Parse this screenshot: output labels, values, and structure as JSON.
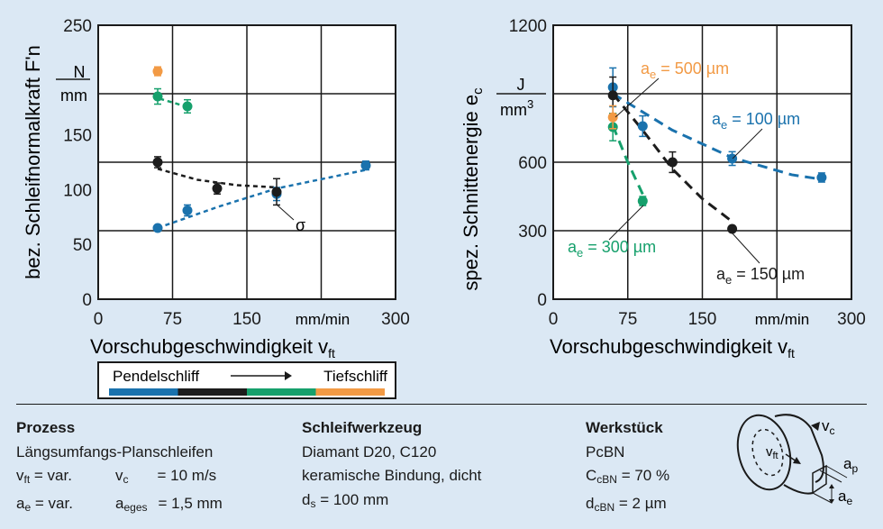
{
  "colors": {
    "blue": "#1a72ad",
    "black": "#1c1c1c",
    "green": "#16a06c",
    "orange": "#f29a45",
    "background": "#dbe8f4"
  },
  "chart_data": [
    {
      "type": "scatter",
      "ylabel": "bez. Schleifnormalkraft F'n",
      "yunit_num": "N",
      "yunit_den": "mm",
      "xlabel_main": "Vorschubgeschwindigkeit v",
      "xlabel_sub": "ft",
      "xunit": "mm/min",
      "xlim": [
        0,
        300
      ],
      "ylim": [
        0,
        250
      ],
      "xticks": [
        "0",
        "75",
        "150",
        "300"
      ],
      "yticks": [
        "0",
        "50",
        "100",
        "150",
        "250"
      ],
      "grid": true,
      "annotation": "σ",
      "series": [
        {
          "name": "Pendelschliff (blue)",
          "color": "blue",
          "points": [
            [
              60,
              65,
              1.5
            ],
            [
              90,
              81,
              5
            ],
            [
              180,
              96,
              6
            ],
            [
              270,
              122,
              4
            ]
          ],
          "fit": [
            [
              60,
              65
            ],
            [
              120,
              84
            ],
            [
              180,
              101
            ],
            [
              270,
              118
            ]
          ]
        },
        {
          "name": "black",
          "color": "black",
          "points": [
            [
              60,
              125,
              5
            ],
            [
              120,
              101,
              5
            ],
            [
              180,
              98,
              12
            ]
          ],
          "fit": [
            [
              60,
              119
            ],
            [
              100,
              109
            ],
            [
              140,
              104
            ],
            [
              180,
              102
            ]
          ]
        },
        {
          "name": "green",
          "color": "green",
          "points": [
            [
              60,
              185,
              7
            ],
            [
              90,
              176,
              6
            ]
          ],
          "fit": [
            [
              62,
              183
            ],
            [
              88,
              176
            ]
          ]
        },
        {
          "name": "Tiefschliff (orange)",
          "color": "orange",
          "points": [
            [
              60,
              208,
              4
            ]
          ],
          "fit": []
        }
      ]
    },
    {
      "type": "scatter",
      "ylabel": "spez. Schnittenergie e",
      "ylabel_sub": "c",
      "yunit_num": "J",
      "yunit_den": "mm",
      "yunit_exp": "3",
      "xlabel_main": "Vorschubgeschwindigkeit v",
      "xlabel_sub": "ft",
      "xunit": "mm/min",
      "xlim": [
        0,
        300
      ],
      "ylim": [
        0,
        1200
      ],
      "xticks": [
        "0",
        "75",
        "150",
        "300"
      ],
      "yticks": [
        "0",
        "300",
        "600",
        "1200"
      ],
      "grid": true,
      "series": [
        {
          "name": "a_e = 100 µm",
          "color": "blue",
          "label_a": "a",
          "label_sub": "e",
          "label_rest": " = 100 µm",
          "points": [
            [
              60,
              928,
              85
            ],
            [
              90,
              758,
              45
            ],
            [
              180,
              616,
              30
            ],
            [
              270,
              533,
              20
            ]
          ],
          "fit": [
            [
              60,
              900
            ],
            [
              120,
              740
            ],
            [
              180,
              620
            ],
            [
              240,
              545
            ],
            [
              270,
              525
            ]
          ]
        },
        {
          "name": "a_e = 150 µm",
          "color": "black",
          "label_a": "a",
          "label_sub": "e",
          "label_rest": " = 150 µm",
          "points": [
            [
              60,
              893,
              80
            ],
            [
              120,
              600,
              45
            ],
            [
              180,
              308,
              10
            ]
          ],
          "fit": [
            [
              60,
              900
            ],
            [
              90,
              740
            ],
            [
              120,
              570
            ],
            [
              150,
              440
            ],
            [
              180,
              340
            ]
          ]
        },
        {
          "name": "a_e = 300 µm",
          "color": "green",
          "label_a": "a",
          "label_sub": "e",
          "label_rest": " = 300 µm",
          "points": [
            [
              60,
              754,
              60
            ],
            [
              90,
              430,
              20
            ]
          ],
          "fit": [
            [
              60,
              760
            ],
            [
              75,
              600
            ],
            [
              90,
              460
            ]
          ]
        },
        {
          "name": "a_e = 500 µm",
          "color": "orange",
          "label_a": "a",
          "label_sub": "e",
          "label_rest": " = 500 µm",
          "points": [
            [
              60,
              797,
              50
            ]
          ],
          "fit": []
        }
      ]
    }
  ],
  "legend": {
    "left": "Pendelschliff",
    "right": "Tiefschliff",
    "colors": [
      "blue",
      "black",
      "green",
      "orange"
    ]
  },
  "process": {
    "title": "Prozess",
    "line1": "Längsumfangs-Planschleifen",
    "vft": {
      "sym": "v",
      "sub": "ft",
      "val": "= var."
    },
    "vc": {
      "sym": "v",
      "sub": "c",
      "val": "= 10 m/s"
    },
    "ae": {
      "sym": "a",
      "sub": "e",
      "val": "= var."
    },
    "aeges": {
      "sym": "a",
      "sub": "eges",
      "val": "= 1,5 mm"
    }
  },
  "tool": {
    "title": "Schleifwerkzeug",
    "line1": "Diamant D20, C120",
    "line2": "keramische Bindung, dicht",
    "ds": {
      "sym": "d",
      "sub": "s",
      "val": "= 100 mm"
    }
  },
  "workpiece": {
    "title": "Werkstück",
    "material": "PcBN",
    "ccbn": {
      "sym": "C",
      "sub": "cBN",
      "val": "= 70 %"
    },
    "dcbn": {
      "sym": "d",
      "sub": "cBN",
      "val": "= 2 µm"
    }
  },
  "diagram": {
    "vc": "v",
    "vc_sub": "c",
    "vft": "v",
    "vft_sub": "ft",
    "ap": "a",
    "ap_sub": "p",
    "ae": "a",
    "ae_sub": "e"
  }
}
